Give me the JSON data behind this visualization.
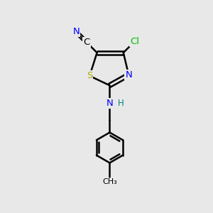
{
  "bg_color": "#e8e8e8",
  "bond_color": "#000000",
  "bond_width": 1.8,
  "atom_colors": {
    "C": "#000000",
    "N": "#0000ff",
    "S": "#aaaa00",
    "Cl": "#00bb00",
    "H": "#008080"
  },
  "figsize": [
    3.0,
    3.0
  ],
  "dpi": 100,
  "scale": 1.0
}
